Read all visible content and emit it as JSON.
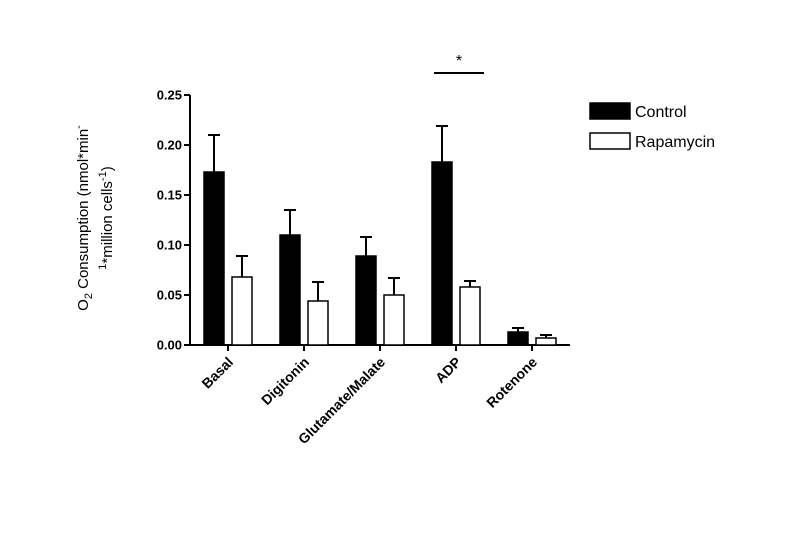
{
  "chart_data": {
    "type": "bar",
    "title": "",
    "xlabel": "",
    "ylabel_parts": {
      "line1_o": "O",
      "line1_sub": "2",
      "line1_rest": " Consumption (nmol*min",
      "line1_sup": "-",
      "line2_sup": "1",
      "line2_text": "*million cells",
      "line2_sup2": "-1",
      "line2_close": ")"
    },
    "ylim": [
      0,
      0.25
    ],
    "yticks": [
      "0.00",
      "0.05",
      "0.10",
      "0.15",
      "0.20",
      "0.25"
    ],
    "ytick_values": [
      0,
      0.05,
      0.1,
      0.15,
      0.2,
      0.25
    ],
    "categories": [
      "Basal",
      "Digitonin",
      "Glutamate/Malate",
      "ADP",
      "Rotenone"
    ],
    "series": [
      {
        "name": "Control",
        "color": "#000000",
        "values": [
          0.173,
          0.11,
          0.089,
          0.183,
          0.013
        ],
        "errors": [
          0.037,
          0.025,
          0.019,
          0.036,
          0.004
        ]
      },
      {
        "name": "Rapamycin",
        "color": "#ffffff",
        "values": [
          0.068,
          0.044,
          0.05,
          0.058,
          0.007
        ],
        "errors": [
          0.021,
          0.019,
          0.017,
          0.006,
          0.003
        ]
      }
    ],
    "legend_position": "top-right",
    "annotations": [
      {
        "text": "*",
        "category": "ADP"
      }
    ]
  }
}
